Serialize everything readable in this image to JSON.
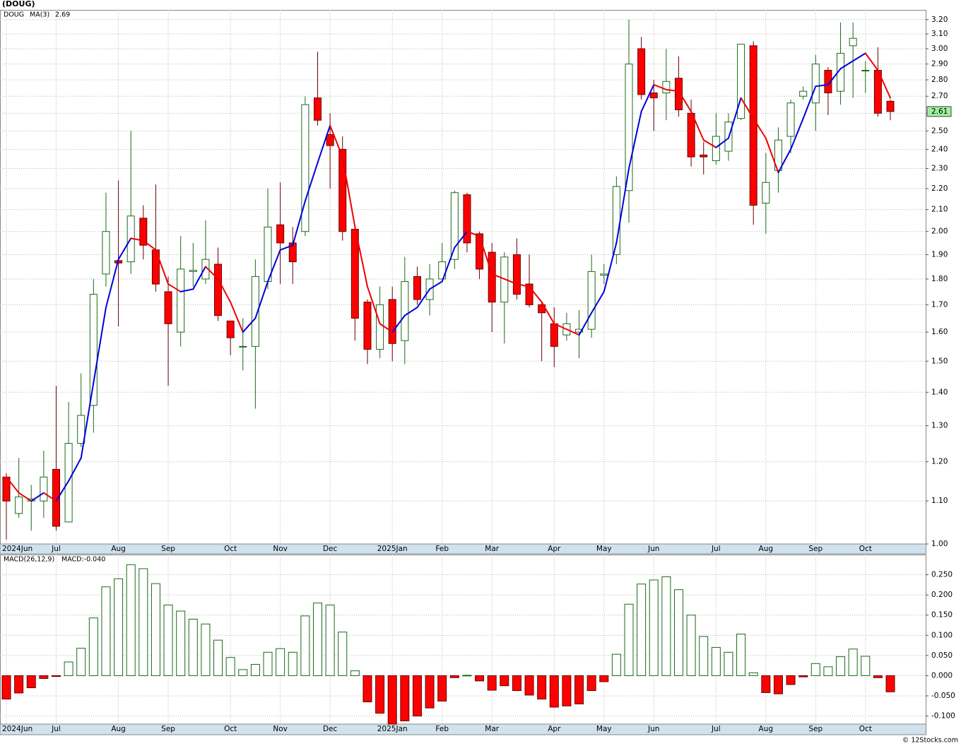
{
  "chart_data": [
    {
      "type": "candlestick",
      "title": "(DOUG)",
      "ticker": "DOUG",
      "categories": [
        "2024Jun",
        null,
        null,
        null,
        "Jul",
        null,
        null,
        null,
        null,
        "Aug",
        null,
        null,
        null,
        "Sep",
        null,
        null,
        null,
        null,
        "Oct",
        null,
        null,
        null,
        "Nov",
        null,
        null,
        null,
        "Dec",
        null,
        null,
        null,
        null,
        "2025Jan",
        null,
        null,
        null,
        "Feb",
        null,
        null,
        null,
        "Mar",
        null,
        null,
        null,
        null,
        "Apr",
        null,
        null,
        null,
        "May",
        null,
        null,
        null,
        "Jun",
        null,
        null,
        null,
        null,
        "Jul",
        null,
        null,
        null,
        "Aug",
        null,
        null,
        null,
        "Sep",
        null,
        null,
        null,
        "Oct",
        null,
        null
      ],
      "open": [
        1.16,
        1.07,
        1.1,
        1.1,
        1.18,
        1.05,
        1.25,
        1.36,
        1.82,
        1.875,
        1.87,
        2.06,
        1.92,
        1.75,
        1.6,
        1.83,
        1.8,
        1.86,
        1.64,
        1.55,
        1.55,
        1.79,
        2.03,
        1.95,
        2.0,
        2.69,
        2.48,
        2.4,
        2.01,
        1.71,
        1.54,
        1.72,
        1.57,
        1.81,
        1.72,
        1.8,
        1.88,
        2.17,
        1.99,
        1.91,
        1.71,
        1.9,
        1.78,
        1.7,
        1.63,
        1.59,
        1.6,
        1.61,
        1.815,
        1.9,
        2.19,
        3.0,
        2.72,
        2.72,
        2.81,
        2.6,
        2.37,
        2.34,
        2.39,
        2.57,
        3.02,
        2.13,
        2.29,
        2.47,
        2.7,
        2.66,
        2.86,
        2.73,
        3.02,
        2.86,
        2.86,
        2.67
      ],
      "high": [
        1.17,
        1.21,
        1.14,
        1.23,
        1.42,
        1.37,
        1.46,
        1.8,
        2.18,
        2.24,
        2.5,
        2.12,
        2.22,
        1.81,
        1.98,
        1.95,
        2.05,
        1.93,
        1.64,
        1.65,
        1.88,
        2.2,
        2.23,
        2.02,
        2.7,
        2.98,
        2.6,
        2.47,
        2.03,
        1.72,
        1.77,
        1.77,
        1.89,
        1.85,
        1.86,
        1.95,
        2.19,
        2.18,
        2.0,
        1.95,
        1.91,
        1.97,
        1.9,
        1.71,
        1.69,
        1.67,
        1.68,
        1.9,
        1.86,
        2.26,
        3.2,
        3.08,
        2.8,
        3.0,
        2.95,
        2.68,
        2.44,
        2.6,
        2.6,
        3.03,
        3.05,
        2.38,
        2.52,
        2.68,
        2.76,
        2.96,
        2.88,
        3.18,
        3.18,
        2.92,
        3.01,
        2.68
      ],
      "low": [
        1.01,
        1.06,
        1.03,
        1.06,
        1.03,
        1.05,
        1.24,
        1.28,
        1.77,
        1.62,
        1.82,
        1.88,
        1.75,
        1.42,
        1.55,
        1.77,
        1.78,
        1.64,
        1.52,
        1.47,
        1.35,
        1.76,
        1.78,
        1.78,
        1.98,
        2.53,
        2.2,
        1.96,
        1.57,
        1.49,
        1.51,
        1.5,
        1.49,
        1.7,
        1.66,
        1.8,
        1.84,
        1.91,
        1.8,
        1.6,
        1.56,
        1.72,
        1.69,
        1.5,
        1.48,
        1.57,
        1.51,
        1.58,
        1.78,
        1.86,
        2.04,
        2.68,
        2.5,
        2.56,
        2.58,
        2.31,
        2.27,
        2.32,
        2.34,
        2.56,
        2.03,
        1.99,
        2.18,
        2.38,
        2.68,
        2.5,
        2.59,
        2.65,
        2.69,
        2.72,
        2.58,
        2.56
      ],
      "close": [
        1.1,
        1.11,
        1.105,
        1.16,
        1.04,
        1.25,
        1.33,
        1.74,
        2.0,
        1.865,
        2.07,
        1.94,
        1.78,
        1.63,
        1.84,
        1.835,
        1.88,
        1.66,
        1.58,
        1.55,
        1.81,
        2.02,
        1.95,
        1.87,
        2.65,
        2.56,
        2.42,
        2.0,
        1.65,
        1.54,
        1.7,
        1.56,
        1.79,
        1.72,
        1.8,
        1.87,
        2.18,
        1.95,
        1.84,
        1.71,
        1.89,
        1.74,
        1.7,
        1.67,
        1.55,
        1.63,
        1.61,
        1.83,
        1.82,
        2.21,
        2.9,
        2.71,
        2.69,
        2.79,
        2.62,
        2.36,
        2.36,
        2.47,
        2.55,
        3.03,
        2.12,
        2.23,
        2.45,
        2.66,
        2.73,
        2.9,
        2.72,
        2.97,
        3.07,
        2.86,
        2.6,
        2.61
      ],
      "up_color": "#1a6b1a",
      "down_color": "#ff0000",
      "ma": {
        "name": "MA(3)",
        "up_color": "#0000dd",
        "down_color": "#ee0000",
        "values": [
          1.16,
          1.12,
          1.1,
          1.12,
          1.1,
          1.15,
          1.21,
          1.43,
          1.69,
          1.88,
          1.97,
          1.96,
          1.92,
          1.78,
          1.75,
          1.76,
          1.85,
          1.8,
          1.71,
          1.6,
          1.65,
          1.79,
          1.92,
          1.94,
          2.14,
          2.33,
          2.53,
          2.36,
          2.02,
          1.77,
          1.63,
          1.6,
          1.66,
          1.69,
          1.76,
          1.79,
          1.93,
          2.0,
          1.98,
          1.82,
          1.8,
          1.78,
          1.77,
          1.71,
          1.63,
          1.61,
          1.59,
          1.67,
          1.75,
          1.95,
          2.3,
          2.61,
          2.77,
          2.74,
          2.73,
          2.61,
          2.45,
          2.41,
          2.46,
          2.69,
          2.57,
          2.46,
          2.28,
          2.4,
          2.57,
          2.76,
          2.77,
          2.87,
          2.92,
          2.97,
          2.86,
          2.69
        ]
      },
      "log_scale": true,
      "grid": true,
      "ylim": [
        1.0,
        3.27
      ],
      "yticks": [
        {
          "value": 1.0,
          "label": "1.00"
        },
        {
          "value": 1.1,
          "label": "1.10"
        },
        {
          "value": 1.2,
          "label": "1.20"
        },
        {
          "value": 1.3,
          "label": "1.30"
        },
        {
          "value": 1.4,
          "label": "1.40"
        },
        {
          "value": 1.5,
          "label": "1.50"
        },
        {
          "value": 1.6,
          "label": "1.60"
        },
        {
          "value": 1.7,
          "label": "1.70"
        },
        {
          "value": 1.8,
          "label": "1.80"
        },
        {
          "value": 1.9,
          "label": "1.90"
        },
        {
          "value": 2.0,
          "label": "2.00"
        },
        {
          "value": 2.1,
          "label": "2.10"
        },
        {
          "value": 2.2,
          "label": "2.20"
        },
        {
          "value": 2.3,
          "label": "2.30"
        },
        {
          "value": 2.4,
          "label": "2.40"
        },
        {
          "value": 2.5,
          "label": "2.50"
        },
        {
          "value": 2.6,
          "label": "2.60"
        },
        {
          "value": 2.7,
          "label": "2.70"
        },
        {
          "value": 2.8,
          "label": "2.80"
        },
        {
          "value": 2.9,
          "label": "2.90"
        },
        {
          "value": 3.0,
          "label": "3.00"
        },
        {
          "value": 3.1,
          "label": "3.10"
        },
        {
          "value": 3.2,
          "label": "3.20"
        }
      ]
    },
    {
      "type": "bar",
      "title": "MACD(26,12,9)",
      "legend_value": "MACD:-0.040",
      "source": "© 12Stocks.com",
      "categories": [
        "2024Jun",
        null,
        null,
        null,
        "Jul",
        null,
        null,
        null,
        null,
        "Aug",
        null,
        null,
        null,
        "Sep",
        null,
        null,
        null,
        null,
        "Oct",
        null,
        null,
        null,
        "Nov",
        null,
        null,
        null,
        "Dec",
        null,
        null,
        null,
        null,
        "2025Jan",
        null,
        null,
        null,
        "Feb",
        null,
        null,
        null,
        "Mar",
        null,
        null,
        null,
        null,
        "Apr",
        null,
        null,
        null,
        "May",
        null,
        null,
        null,
        "Jun",
        null,
        null,
        null,
        null,
        "Jul",
        null,
        null,
        null,
        "Aug",
        null,
        null,
        null,
        "Sep",
        null,
        null,
        null,
        "Oct",
        null,
        null
      ],
      "values": [
        -0.058,
        -0.043,
        -0.03,
        -0.007,
        -0.002,
        0.034,
        0.068,
        0.143,
        0.22,
        0.24,
        0.275,
        0.265,
        0.228,
        0.175,
        0.16,
        0.14,
        0.128,
        0.088,
        0.045,
        0.015,
        0.028,
        0.058,
        0.067,
        0.058,
        0.148,
        0.18,
        0.175,
        0.108,
        0.012,
        -0.065,
        -0.093,
        -0.12,
        -0.112,
        -0.1,
        -0.08,
        -0.063,
        -0.005,
        0.001,
        -0.013,
        -0.036,
        -0.025,
        -0.037,
        -0.048,
        -0.058,
        -0.078,
        -0.075,
        -0.07,
        -0.037,
        -0.015,
        0.053,
        0.177,
        0.227,
        0.237,
        0.245,
        0.213,
        0.15,
        0.097,
        0.07,
        0.058,
        0.103,
        0.007,
        -0.042,
        -0.045,
        -0.022,
        -0.003,
        0.03,
        0.022,
        0.047,
        0.066,
        0.048,
        -0.005,
        -0.04
      ],
      "up_color": "#1a6b1a",
      "down_color": "#ff0000",
      "grid": true,
      "ylim": [
        -0.12,
        0.3
      ],
      "yticks": [
        {
          "value": -0.1,
          "label": "-0.100"
        },
        {
          "value": -0.05,
          "label": "-0.050"
        },
        {
          "value": 0,
          "label": "0.000"
        },
        {
          "value": 0.05,
          "label": "0.050"
        },
        {
          "value": 0.1,
          "label": "0.100"
        },
        {
          "value": 0.15,
          "label": "0.150"
        },
        {
          "value": 0.2,
          "label": "0.200"
        },
        {
          "value": 0.25,
          "label": "0.250"
        }
      ]
    }
  ]
}
